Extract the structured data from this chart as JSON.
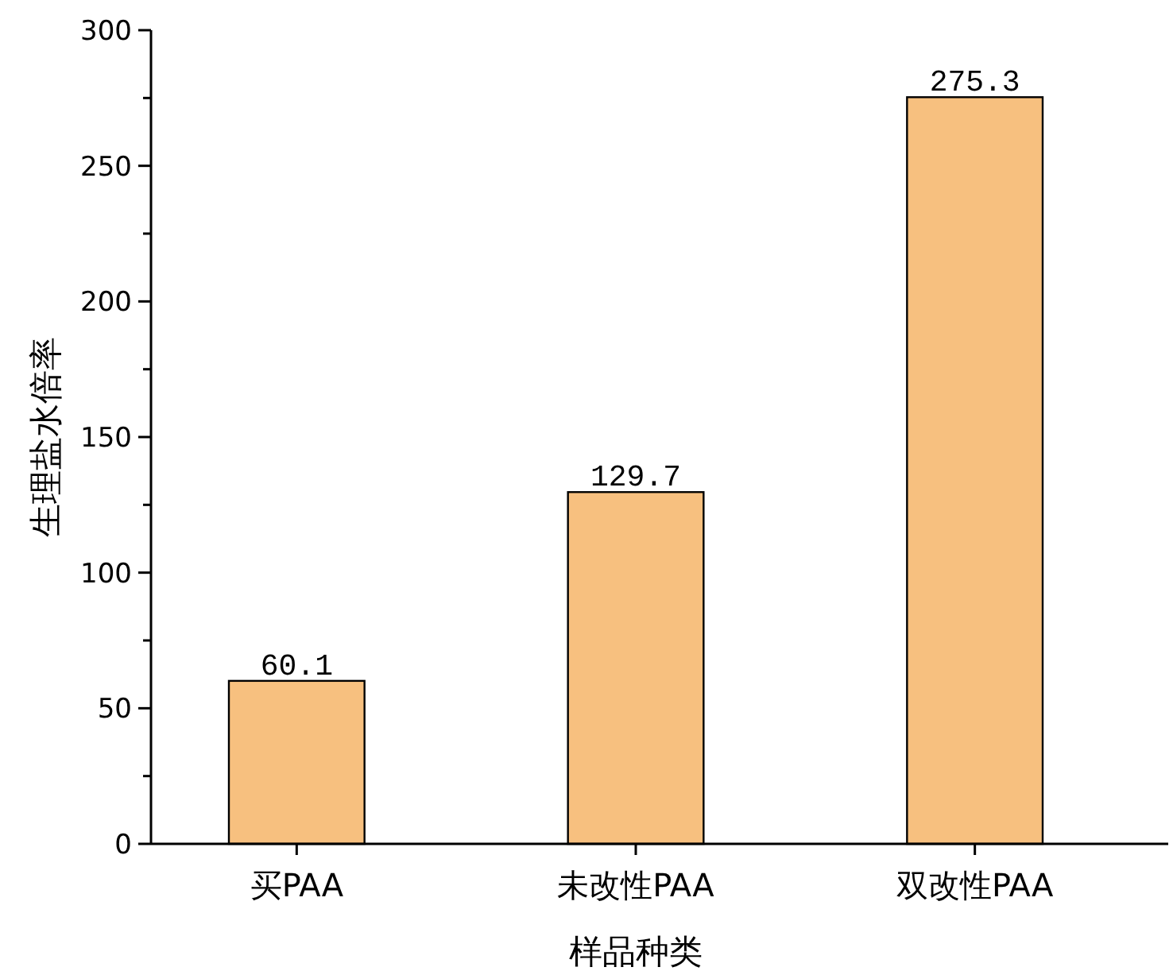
{
  "chart_data": {
    "type": "bar",
    "xlabel": "样品种类",
    "ylabel": "生理盐水倍率",
    "categories": [
      "买PAA",
      "未改性PAA",
      "双改性PAA"
    ],
    "values": [
      60.1,
      129.7,
      275.3
    ],
    "color": "#f7c07f",
    "ylim": [
      0,
      300
    ],
    "yticks": [
      0,
      {
        "value": 25,
        "label": null
      },
      50,
      {
        "value": 75,
        "label": null
      },
      100,
      {
        "value": 125,
        "label": null
      },
      150,
      {
        "value": 175,
        "label": null
      },
      200,
      {
        "value": 225,
        "label": null
      },
      250,
      {
        "value": 275,
        "label": null
      },
      300
    ],
    "data_labels": true
  }
}
